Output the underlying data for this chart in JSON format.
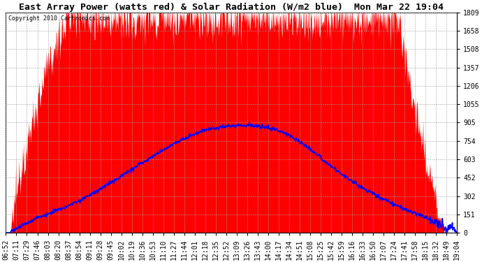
{
  "title": "East Array Power (watts red) & Solar Radiation (W/m2 blue)  Mon Mar 22 19:04",
  "copyright": "Copyright 2010 Cartronics.com",
  "y_ticks": [
    0.0,
    150.8,
    301.5,
    452.3,
    603.1,
    753.8,
    904.6,
    1055.4,
    1206.1,
    1356.9,
    1507.7,
    1658.4,
    1809.2
  ],
  "y_max": 1809.2,
  "x_labels": [
    "06:52",
    "07:11",
    "07:29",
    "07:46",
    "08:03",
    "08:20",
    "08:37",
    "08:54",
    "09:11",
    "09:28",
    "09:45",
    "10:02",
    "10:19",
    "10:36",
    "10:53",
    "11:10",
    "11:27",
    "11:44",
    "12:01",
    "12:18",
    "12:35",
    "12:52",
    "13:09",
    "13:26",
    "13:43",
    "14:00",
    "14:17",
    "14:34",
    "14:51",
    "15:08",
    "15:25",
    "15:42",
    "15:59",
    "16:16",
    "16:33",
    "16:50",
    "17:07",
    "17:24",
    "17:41",
    "17:58",
    "18:15",
    "18:32",
    "18:49",
    "19:04"
  ],
  "bg_color": "#ffffff",
  "plot_bg": "#ffffff",
  "grid_color": "#a0a0a0",
  "fill_color": "#ff0000",
  "line_color": "#0000ff",
  "title_fontsize": 9.5,
  "tick_fontsize": 7,
  "power_max": 1809.2,
  "radiation_max": 870
}
